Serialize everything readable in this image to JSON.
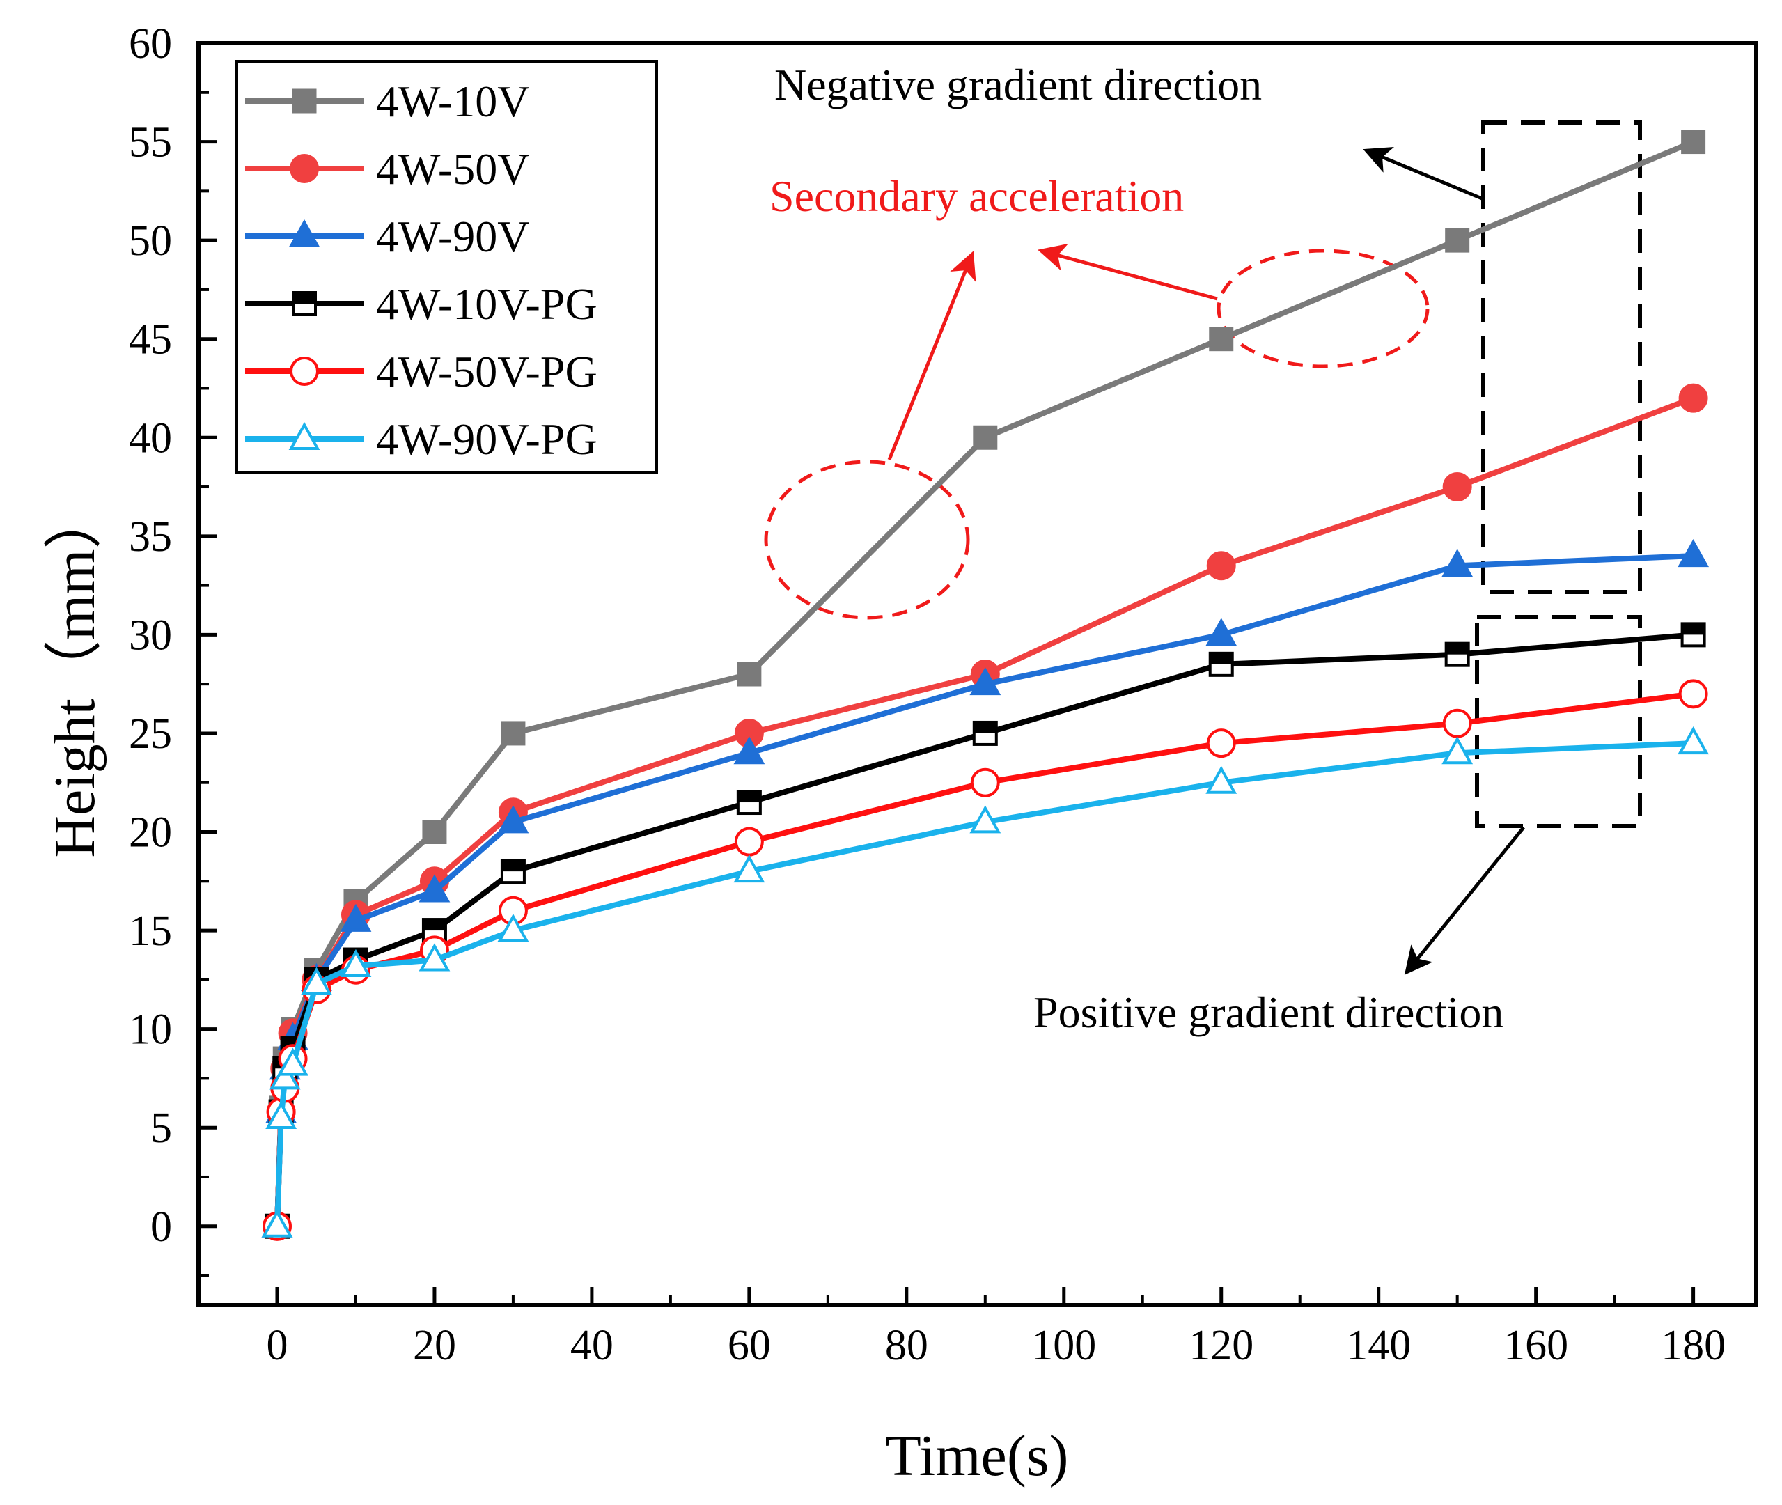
{
  "chart_data": {
    "type": "line",
    "title": "",
    "xlabel": "Time(s)",
    "ylabel": "Height（mm）",
    "xlim": [
      -10,
      188
    ],
    "ylim": [
      -4,
      60
    ],
    "xticks": [
      0,
      20,
      40,
      60,
      80,
      100,
      120,
      140,
      160,
      180
    ],
    "yticks": [
      0,
      5,
      10,
      15,
      20,
      25,
      30,
      35,
      40,
      45,
      50,
      55,
      60
    ],
    "grid": false,
    "legend_position": "top-left",
    "series": [
      {
        "name": "4W-10V",
        "color": "#7a7a7a",
        "marker": "square",
        "filled": true,
        "x": [
          0,
          0.5,
          1,
          2,
          5,
          10,
          20,
          30,
          60,
          90,
          120,
          150,
          180
        ],
        "y": [
          0,
          6,
          8.5,
          10,
          13,
          16.5,
          20,
          25,
          28,
          40,
          45,
          50,
          55
        ]
      },
      {
        "name": "4W-50V",
        "color": "#f04040",
        "marker": "circle",
        "filled": true,
        "x": [
          0,
          0.5,
          1,
          2,
          5,
          10,
          20,
          30,
          60,
          90,
          120,
          150,
          180
        ],
        "y": [
          0,
          5.8,
          8,
          9.8,
          12.5,
          15.8,
          17.5,
          21,
          25,
          28,
          33.5,
          37.5,
          42
        ]
      },
      {
        "name": "4W-90V",
        "color": "#1f6fd6",
        "marker": "triangle",
        "filled": true,
        "x": [
          0,
          0.5,
          1,
          2,
          5,
          10,
          20,
          30,
          60,
          90,
          120,
          150,
          180
        ],
        "y": [
          0,
          5.8,
          8,
          9.5,
          12.5,
          15.5,
          17,
          20.5,
          24,
          27.5,
          30,
          33.5,
          34
        ]
      },
      {
        "name": "4W-10V-PG",
        "color": "#000000",
        "marker": "square",
        "filled": false,
        "x": [
          0,
          0.5,
          1,
          2,
          5,
          10,
          20,
          30,
          60,
          90,
          120,
          150,
          180
        ],
        "y": [
          0,
          5.8,
          8,
          9,
          12.5,
          13.5,
          15,
          18,
          21.5,
          25,
          28.5,
          29,
          30
        ]
      },
      {
        "name": "4W-50V-PG",
        "color": "#ff1010",
        "marker": "circle",
        "filled": false,
        "x": [
          0,
          0.5,
          1,
          2,
          5,
          10,
          20,
          30,
          60,
          90,
          120,
          150,
          180
        ],
        "y": [
          0,
          5.8,
          7,
          8.5,
          12,
          13,
          14,
          16,
          19.5,
          22.5,
          24.5,
          25.5,
          27
        ]
      },
      {
        "name": "4W-90V-PG",
        "color": "#1ab2ec",
        "marker": "triangle",
        "filled": false,
        "x": [
          0,
          0.5,
          1,
          2,
          5,
          10,
          20,
          30,
          60,
          90,
          120,
          150,
          180
        ],
        "y": [
          0,
          5.5,
          7.5,
          8.2,
          12.3,
          13.2,
          13.5,
          15,
          18,
          20.5,
          22.5,
          24,
          24.5
        ]
      }
    ],
    "annotations": {
      "negative": {
        "text": "Negative gradient direction",
        "color": "#000000"
      },
      "secondary": {
        "text": "Secondary acceleration",
        "color": "#f01a1a"
      },
      "positive": {
        "text": "Positive gradient direction",
        "color": "#000000"
      }
    }
  }
}
